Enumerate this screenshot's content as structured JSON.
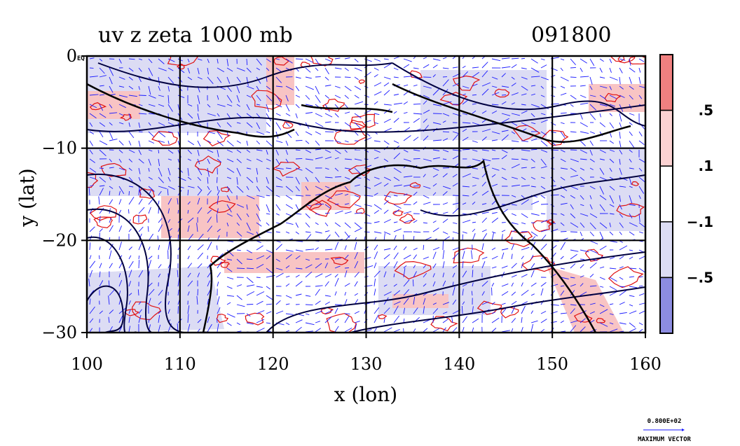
{
  "title": "uv z zeta 1000 mb",
  "timestamp": "091800",
  "xlabel": "x (lon)",
  "ylabel": "y (lat)",
  "x_ticks": [
    "100",
    "110",
    "120",
    "130",
    "140",
    "150",
    "160"
  ],
  "y_ticks": [
    "0",
    "−10",
    "−20",
    "−30"
  ],
  "y_tick_suffix": "EQ",
  "colorbar": {
    "labels": [
      ".5",
      ".1",
      "−.1",
      "−.5"
    ],
    "colors": [
      "#f08080",
      "#fbd2d2",
      "#ffffff",
      "#dcdcf4",
      "#8c8ce0"
    ]
  },
  "vector_reference": {
    "value": "0.800E+02",
    "label": "MAXIMUM VECTOR"
  },
  "colors": {
    "positive_contour": "#e01010",
    "negative_fill": "#dcdcf4",
    "positive_fill": "#f8c4c4",
    "vectors": "#1a1aff",
    "height_contour": "#000040"
  },
  "chart_data": {
    "type": "map",
    "x_range": [
      100,
      160
    ],
    "y_range": [
      -30,
      0
    ],
    "grid": true,
    "grid_spacing": 10
  }
}
